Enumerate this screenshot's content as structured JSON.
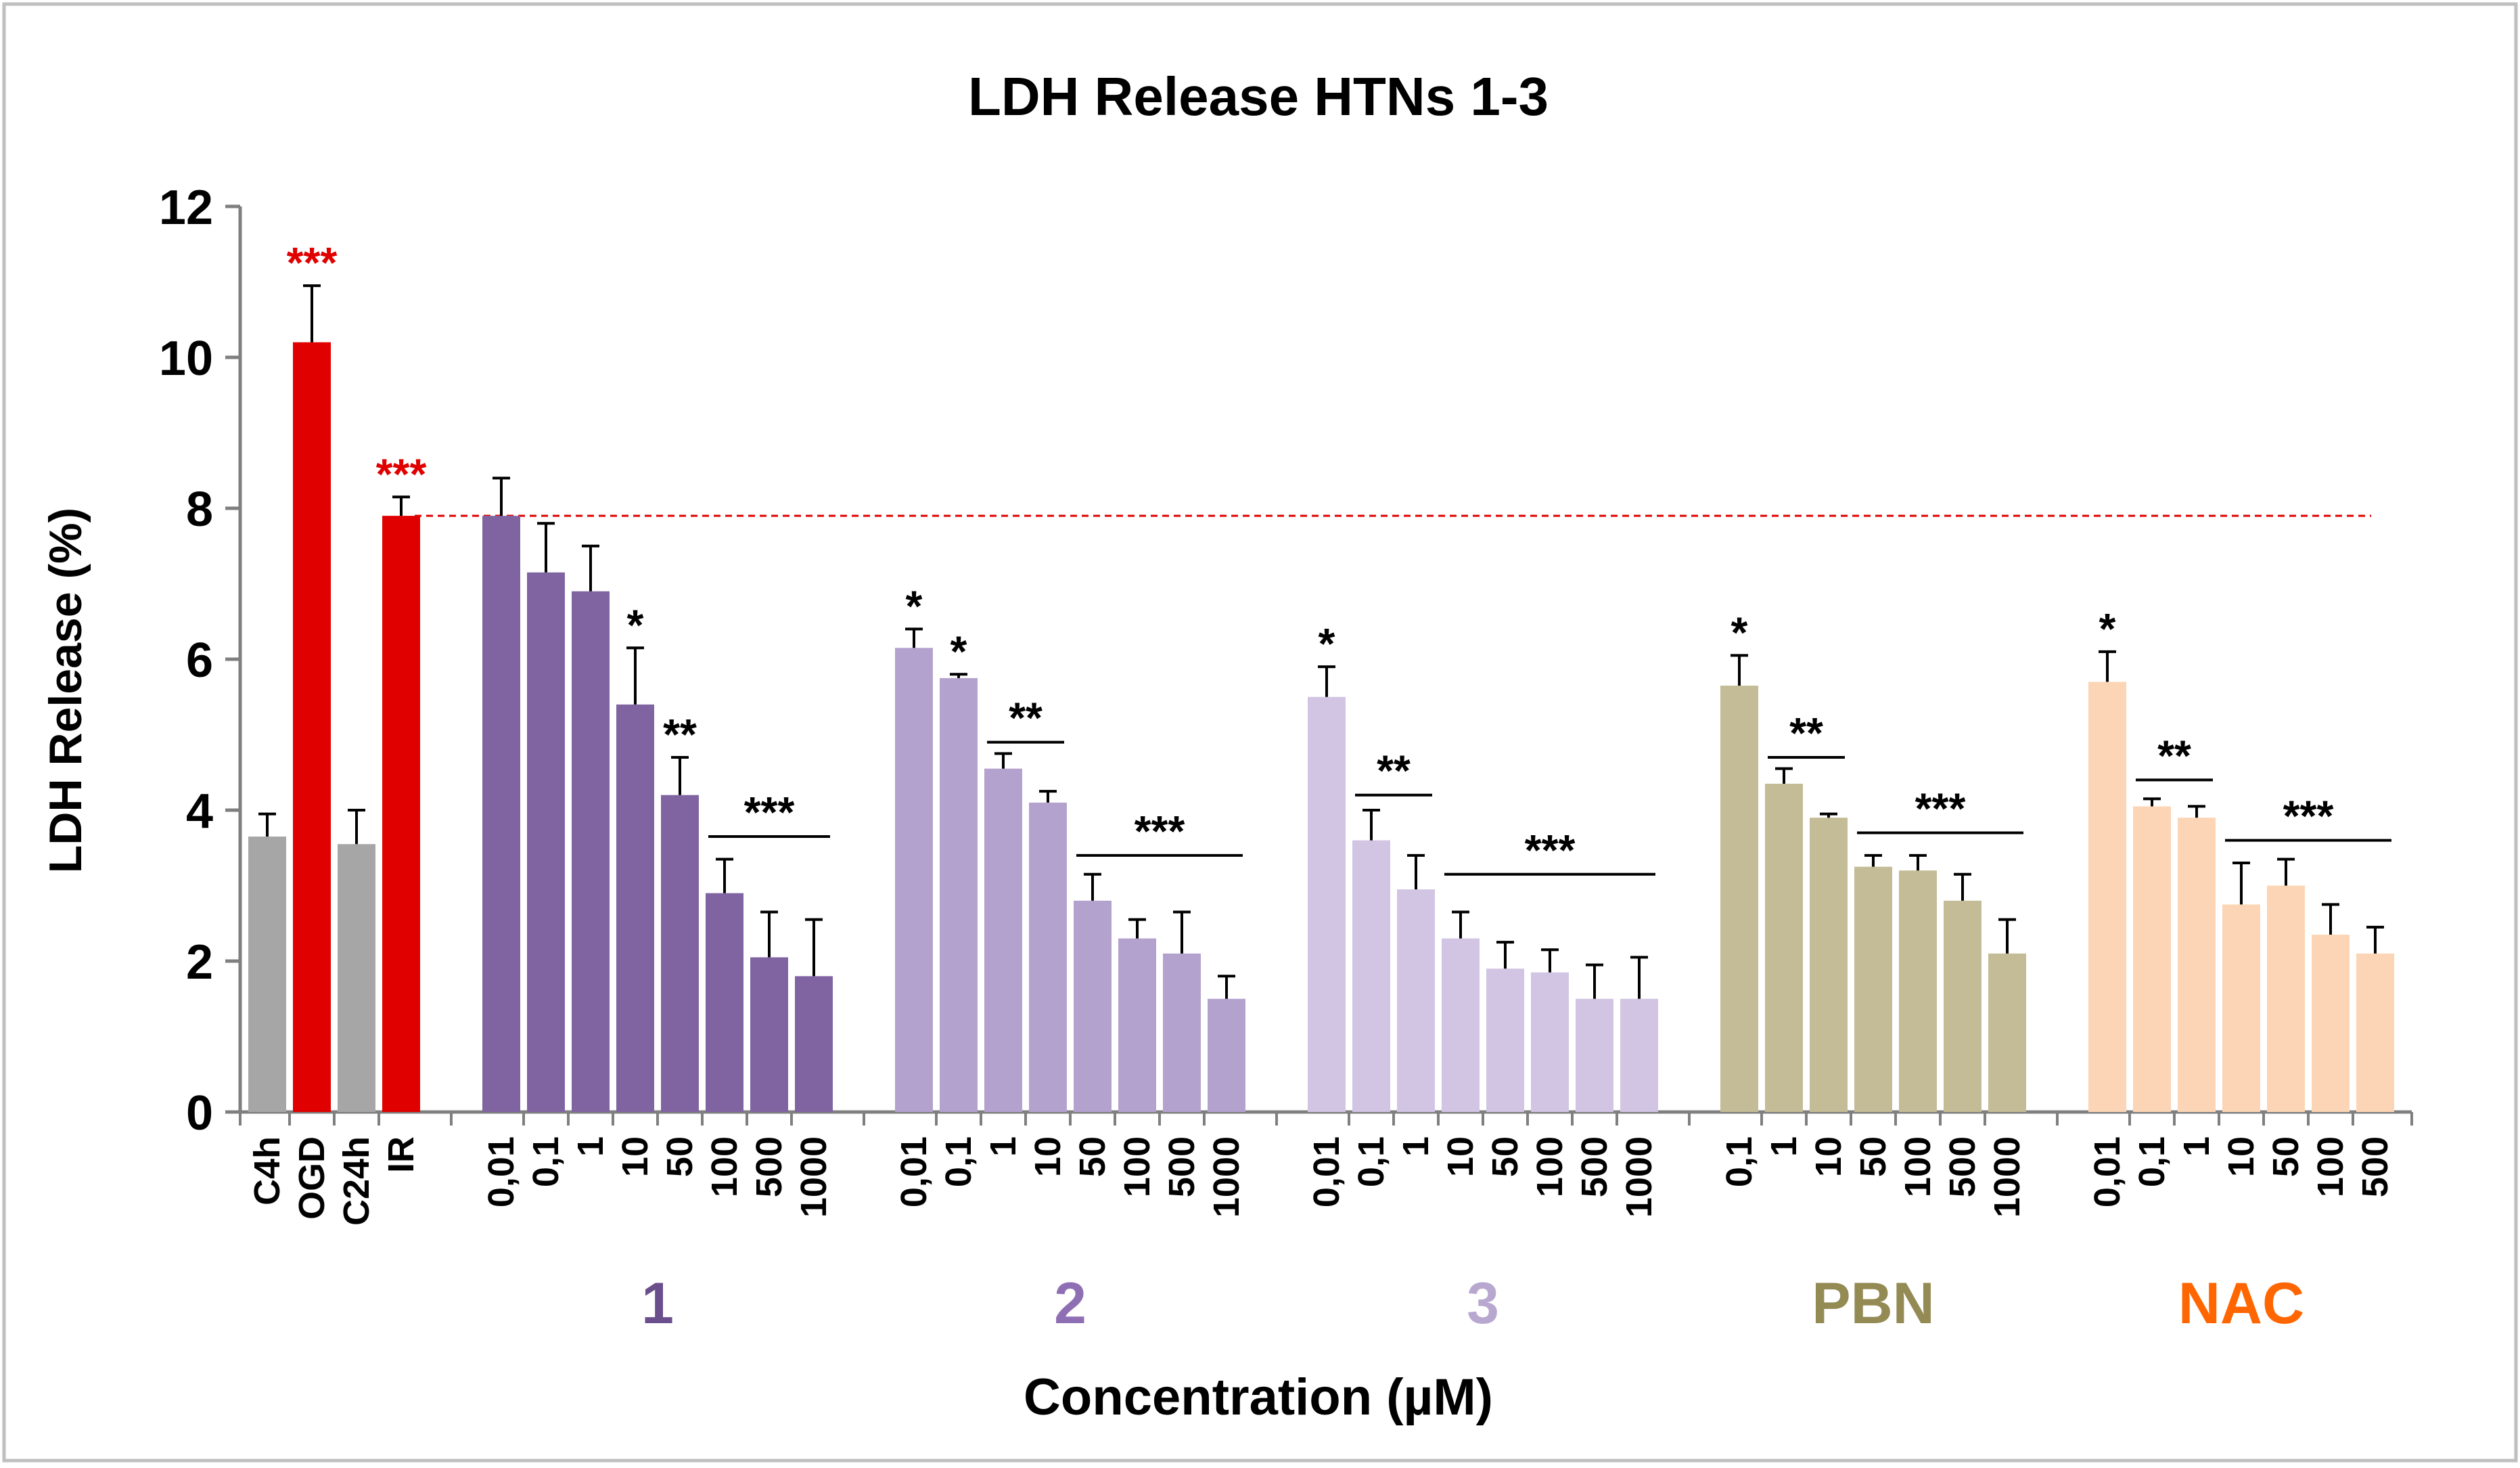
{
  "chart_data": {
    "type": "bar",
    "title": "LDH Release HTNs 1-3",
    "xlabel": "Concentration (µM)",
    "ylabel": "LDH Release (%)",
    "ylim": [
      0,
      12
    ],
    "yticks": [
      "0",
      "2",
      "4",
      "6",
      "8",
      "10",
      "12"
    ],
    "reference_line": {
      "value": 7.9,
      "color": "#e00000",
      "style": "dashed"
    },
    "groups": [
      {
        "name": "",
        "color": "#a6a6a6",
        "bars": [
          {
            "label": "C4h",
            "value": 3.65,
            "error": 0.3,
            "color": "#a6a6a6",
            "sig": ""
          },
          {
            "label": "OGD",
            "value": 10.2,
            "error": 0.75,
            "color": "#e00000",
            "sig": "***"
          },
          {
            "label": "C24h",
            "value": 3.55,
            "error": 0.45,
            "color": "#a6a6a6",
            "sig": ""
          },
          {
            "label": "IR",
            "value": 7.9,
            "error": 0.25,
            "color": "#e00000",
            "sig": "***"
          }
        ],
        "brackets": []
      },
      {
        "name": "1",
        "color": "#8064a2",
        "bars": [
          {
            "label": "0,01",
            "value": 7.9,
            "error": 0.5,
            "sig": ""
          },
          {
            "label": "0,1",
            "value": 7.15,
            "error": 0.65,
            "sig": ""
          },
          {
            "label": "1",
            "value": 6.9,
            "error": 0.6,
            "sig": ""
          },
          {
            "label": "10",
            "value": 5.4,
            "error": 0.75,
            "sig": "*"
          },
          {
            "label": "50",
            "value": 4.2,
            "error": 0.5,
            "sig": "**"
          },
          {
            "label": "100",
            "value": 2.9,
            "error": 0.45,
            "sig": ""
          },
          {
            "label": "500",
            "value": 2.05,
            "error": 0.6,
            "sig": ""
          },
          {
            "label": "1000",
            "value": 1.8,
            "error": 0.75,
            "sig": ""
          }
        ],
        "brackets": [
          {
            "from": 5,
            "to": 7,
            "y": 3.65,
            "sig": "***"
          }
        ]
      },
      {
        "name": "2",
        "color": "#b4a2ce",
        "bars": [
          {
            "label": "0,01",
            "value": 6.15,
            "error": 0.25,
            "sig": "*"
          },
          {
            "label": "0,1",
            "value": 5.75,
            "error": 0.05,
            "sig": "*"
          },
          {
            "label": "1",
            "value": 4.55,
            "error": 0.2,
            "sig": ""
          },
          {
            "label": "10",
            "value": 4.1,
            "error": 0.15,
            "sig": ""
          },
          {
            "label": "50",
            "value": 2.8,
            "error": 0.35,
            "sig": ""
          },
          {
            "label": "100",
            "value": 2.3,
            "error": 0.25,
            "sig": ""
          },
          {
            "label": "500",
            "value": 2.1,
            "error": 0.55,
            "sig": ""
          },
          {
            "label": "1000",
            "value": 1.5,
            "error": 0.3,
            "sig": ""
          }
        ],
        "brackets": [
          {
            "from": 2,
            "to": 3,
            "y": 4.9,
            "sig": "**"
          },
          {
            "from": 4,
            "to": 7,
            "y": 3.4,
            "sig": "***"
          }
        ]
      },
      {
        "name": "3",
        "color": "#d1c5e3",
        "bars": [
          {
            "label": "0,01",
            "value": 5.5,
            "error": 0.4,
            "sig": "*"
          },
          {
            "label": "0,1",
            "value": 3.6,
            "error": 0.4,
            "sig": ""
          },
          {
            "label": "1",
            "value": 2.95,
            "error": 0.45,
            "sig": ""
          },
          {
            "label": "10",
            "value": 2.3,
            "error": 0.35,
            "sig": ""
          },
          {
            "label": "50",
            "value": 1.9,
            "error": 0.35,
            "sig": ""
          },
          {
            "label": "100",
            "value": 1.85,
            "error": 0.3,
            "sig": ""
          },
          {
            "label": "500",
            "value": 1.5,
            "error": 0.45,
            "sig": ""
          },
          {
            "label": "1000",
            "value": 1.5,
            "error": 0.55,
            "sig": ""
          }
        ],
        "brackets": [
          {
            "from": 1,
            "to": 2,
            "y": 4.2,
            "sig": "**"
          },
          {
            "from": 3,
            "to": 7,
            "y": 3.15,
            "sig": "***"
          }
        ]
      },
      {
        "name": "PBN",
        "color": "#c4bc96",
        "bars": [
          {
            "label": "0,1",
            "value": 5.65,
            "error": 0.4,
            "sig": "*"
          },
          {
            "label": "1",
            "value": 4.35,
            "error": 0.2,
            "sig": ""
          },
          {
            "label": "10",
            "value": 3.9,
            "error": 0.05,
            "sig": ""
          },
          {
            "label": "50",
            "value": 3.25,
            "error": 0.15,
            "sig": ""
          },
          {
            "label": "100",
            "value": 3.2,
            "error": 0.2,
            "sig": ""
          },
          {
            "label": "500",
            "value": 2.8,
            "error": 0.35,
            "sig": ""
          },
          {
            "label": "1000",
            "value": 2.1,
            "error": 0.45,
            "sig": ""
          }
        ],
        "brackets": [
          {
            "from": 1,
            "to": 2,
            "y": 4.7,
            "sig": "**"
          },
          {
            "from": 3,
            "to": 6,
            "y": 3.7,
            "sig": "***"
          }
        ]
      },
      {
        "name": "NAC",
        "color": "#fbd5b5",
        "bars": [
          {
            "label": "0,01",
            "value": 5.7,
            "error": 0.4,
            "sig": "*"
          },
          {
            "label": "0,1",
            "value": 4.05,
            "error": 0.1,
            "sig": ""
          },
          {
            "label": "1",
            "value": 3.9,
            "error": 0.15,
            "sig": ""
          },
          {
            "label": "10",
            "value": 2.75,
            "error": 0.55,
            "sig": ""
          },
          {
            "label": "50",
            "value": 3.0,
            "error": 0.35,
            "sig": ""
          },
          {
            "label": "100",
            "value": 2.35,
            "error": 0.4,
            "sig": ""
          },
          {
            "label": "500",
            "value": 2.1,
            "error": 0.35,
            "sig": ""
          }
        ],
        "brackets": [
          {
            "from": 1,
            "to": 2,
            "y": 4.4,
            "sig": "**"
          },
          {
            "from": 3,
            "to": 6,
            "y": 3.6,
            "sig": "***"
          }
        ]
      }
    ],
    "group_label_colors": [
      "#000000",
      "#6a4f8c",
      "#8f6fb3",
      "#b8a8d0",
      "#948a54",
      "#ff6600"
    ],
    "sig_color_control": "#e00000",
    "sig_color_default": "#000000"
  }
}
